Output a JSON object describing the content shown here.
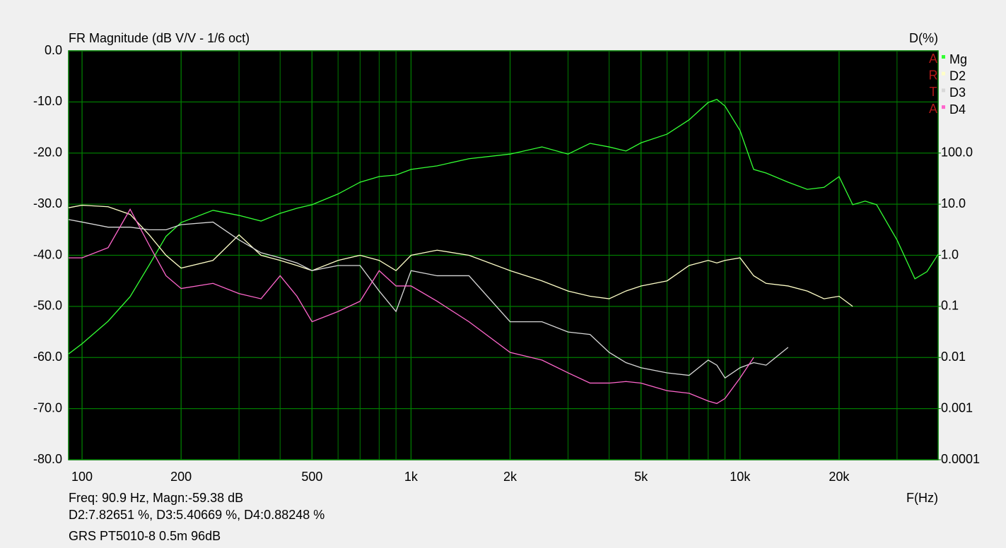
{
  "chart_data": {
    "type": "line",
    "title": "FR Magnitude (dB V/V - 1/6 oct)",
    "y2_label": "D(%)",
    "x_label": "F(Hz)",
    "logo": [
      "A",
      "R",
      "T",
      "A"
    ],
    "xscale": "log",
    "y2scale": "log",
    "grid": true,
    "legend": "top-right",
    "background": "#000000",
    "grid_color": "#007a00",
    "xlim": [
      91,
      40000
    ],
    "xticks": [
      100,
      200,
      500,
      {
        "value": 1000,
        "label": "1k"
      },
      {
        "value": 2000,
        "label": "2k"
      },
      {
        "value": 5000,
        "label": "5k"
      },
      {
        "value": 10000,
        "label": "10k"
      },
      {
        "value": 20000,
        "label": "20k"
      }
    ],
    "ylim": [
      -80,
      0
    ],
    "yticks": [
      {
        "value": 0,
        "label": "0.0"
      },
      {
        "value": -10,
        "label": "-10.0"
      },
      {
        "value": -20,
        "label": "-20.0"
      },
      {
        "value": -30,
        "label": "-30.0"
      },
      {
        "value": -40,
        "label": "-40.0"
      },
      {
        "value": -50,
        "label": "-50.0"
      },
      {
        "value": -60,
        "label": "-60.0"
      },
      {
        "value": -70,
        "label": "-70.0"
      },
      {
        "value": -80,
        "label": "-80.0"
      }
    ],
    "y2lim": [
      0.0001,
      10000
    ],
    "y2ticks": [
      {
        "value": 100,
        "label": "100.0"
      },
      {
        "value": 10,
        "label": "10.0"
      },
      {
        "value": 1,
        "label": "1.0"
      },
      0.1,
      0.01,
      0.001,
      0.0001
    ],
    "x": [
      91,
      100,
      120,
      140,
      160,
      180,
      200,
      250,
      300,
      350,
      400,
      450,
      500,
      600,
      700,
      800,
      900,
      1000,
      1200,
      1500,
      2000,
      2500,
      3000,
      3500,
      4000,
      4500,
      5000,
      6000,
      7000,
      8000,
      8500,
      9000,
      10000,
      11000,
      12000,
      14000,
      16000,
      18000,
      20000,
      22000,
      24000,
      26000,
      30000,
      34000,
      37000,
      40000
    ],
    "series": [
      {
        "name": "Mg",
        "color": "#33ff33",
        "values": [
          -59.3,
          -57.3,
          -52.9,
          -48.1,
          -41.9,
          -36.3,
          -33.6,
          -31.2,
          -32.2,
          -33.3,
          -31.8,
          -30.8,
          -30.1,
          -28.0,
          -25.7,
          -24.6,
          -24.3,
          -23.2,
          -22.5,
          -21.1,
          -20.2,
          -18.8,
          -20.2,
          -18.1,
          -18.8,
          -19.6,
          -18.0,
          -16.3,
          -13.5,
          -10.1,
          -9.5,
          -10.8,
          -15.6,
          -23.2,
          -23.9,
          -25.7,
          -27.1,
          -26.7,
          -24.6,
          -30.1,
          -29.4,
          -30.1,
          -37.0,
          -44.6,
          -43.2,
          -39.8
        ]
      },
      {
        "name": "D2",
        "color": "#ffffc8",
        "axis": "y2",
        "values": [
          8.51,
          9.55,
          8.91,
          6.31,
          2.51,
          1.0,
          0.562,
          0.794,
          2.51,
          1.0,
          0.794,
          0.631,
          0.501,
          0.794,
          1.0,
          0.794,
          0.501,
          1.0,
          1.26,
          1.0,
          0.501,
          0.316,
          0.2,
          0.158,
          0.141,
          0.2,
          0.251,
          0.316,
          0.631,
          0.794,
          0.708,
          0.794,
          0.891,
          0.398,
          0.282,
          0.251,
          0.2,
          0.141,
          0.158,
          0.1,
          null,
          null,
          null,
          null,
          null,
          null
        ]
      },
      {
        "name": "D3",
        "color": "#d8d8d8",
        "axis": "y2",
        "values": [
          5.01,
          4.47,
          3.55,
          3.55,
          3.16,
          3.16,
          3.98,
          4.47,
          2.0,
          1.12,
          0.891,
          0.708,
          0.501,
          0.631,
          0.631,
          0.2,
          0.0794,
          0.501,
          0.398,
          0.398,
          0.0501,
          0.0501,
          0.0316,
          0.0282,
          0.0126,
          0.00794,
          0.00631,
          0.00501,
          0.00447,
          0.00891,
          0.00708,
          0.00398,
          0.00631,
          0.00794,
          0.00708,
          0.0158,
          null,
          null,
          null,
          null,
          null,
          null,
          null,
          null,
          null,
          null
        ]
      },
      {
        "name": "D4",
        "color": "#ff66cc",
        "axis": "y2",
        "values": [
          0.891,
          0.891,
          1.41,
          7.94,
          1.58,
          0.398,
          0.224,
          0.282,
          0.178,
          0.141,
          0.398,
          0.158,
          0.0501,
          0.0794,
          0.126,
          0.501,
          0.251,
          0.251,
          0.126,
          0.0501,
          0.0126,
          0.00891,
          0.00501,
          0.00316,
          0.00316,
          0.00339,
          0.00316,
          0.00224,
          0.002,
          0.00141,
          0.00126,
          0.00158,
          0.00398,
          0.01,
          null,
          null,
          null,
          null,
          null,
          null,
          null,
          null,
          null,
          null,
          null,
          null
        ]
      }
    ],
    "readout": [
      "Freq: 90.9 Hz, Magn:-59.38 dB",
      "D2:7.82651 %, D3:5.40669 %, D4:0.88248 %"
    ],
    "caption": "GRS PT5010-8 0.5m 96dB"
  }
}
